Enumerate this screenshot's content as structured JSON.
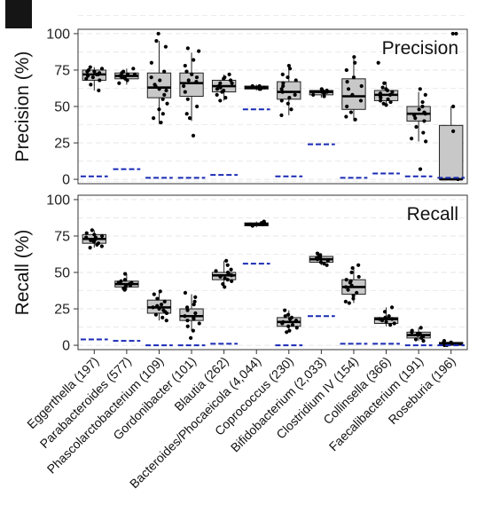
{
  "chart_data": {
    "type": "box",
    "categories": [
      "Eggerthella (197)",
      "Parabacteroides (577)",
      "Phascolarctobacterium (109)",
      "Gordonibacter (101)",
      "Blautia (262)",
      "Bacteroides/Phocaeicola (4,044)",
      "Coprococcus (230)",
      "Bifidobacterium (2,033)",
      "Clostridium IV (154)",
      "Collinsella (366)",
      "Faecalibacterium (191)",
      "Roseburia (196)"
    ],
    "colors": {
      "box_fill": "#c8c8c8",
      "median": "#000000",
      "points": "#000000",
      "baseline": "#1a2ab4",
      "grid": "#e6e6e6"
    },
    "panels": [
      {
        "title": "Precision",
        "ylabel": "Precision (%)",
        "ylim": [
          -3,
          103
        ],
        "yticks": [
          0,
          25,
          50,
          75,
          100
        ],
        "grid": true,
        "boxes": [
          {
            "whisker_low": 61,
            "q1": 68,
            "median": 72,
            "q3": 75,
            "whisker_high": 77
          },
          {
            "whisker_low": 65,
            "q1": 69,
            "median": 71,
            "q3": 73,
            "whisker_high": 76
          },
          {
            "whisker_low": 38,
            "q1": 56,
            "median": 63,
            "q3": 73,
            "whisker_high": 95
          },
          {
            "whisker_low": 40,
            "q1": 57,
            "median": 66,
            "q3": 73,
            "whisker_high": 87
          },
          {
            "whisker_low": 54,
            "q1": 60,
            "median": 64,
            "q3": 68,
            "whisker_high": 72
          },
          {
            "whisker_low": 61,
            "q1": 62,
            "median": 63,
            "q3": 64,
            "whisker_high": 65
          },
          {
            "whisker_low": 44,
            "q1": 55,
            "median": 60,
            "q3": 67,
            "whisker_high": 77
          },
          {
            "whisker_low": 56,
            "q1": 58,
            "median": 60,
            "q3": 61,
            "whisker_high": 63
          },
          {
            "whisker_low": 40,
            "q1": 48,
            "median": 57,
            "q3": 69,
            "whisker_high": 83
          },
          {
            "whisker_low": 50,
            "q1": 54,
            "median": 58,
            "q3": 61,
            "whisker_high": 67
          },
          {
            "whisker_low": 26,
            "q1": 40,
            "median": 45,
            "q3": 50,
            "whisker_high": 60
          },
          {
            "whisker_low": 0,
            "q1": 0,
            "median": 0,
            "q3": 37,
            "whisker_high": 50
          }
        ],
        "points": [
          [
            72,
            74,
            70,
            68,
            75,
            73,
            71,
            76,
            65,
            61,
            69,
            77,
            72,
            74
          ],
          [
            72,
            70,
            74,
            68,
            71,
            66,
            76,
            73,
            69,
            72,
            70
          ],
          [
            100,
            95,
            91,
            80,
            74,
            70,
            68,
            65,
            62,
            58,
            55,
            52,
            48,
            45,
            42,
            39,
            61,
            64
          ],
          [
            90,
            88,
            82,
            78,
            74,
            70,
            67,
            64,
            60,
            55,
            50,
            45,
            42,
            30,
            72,
            68
          ],
          [
            72,
            70,
            68,
            66,
            64,
            62,
            60,
            58,
            56,
            54,
            66,
            63,
            61,
            69
          ],
          [
            62,
            63,
            64,
            63,
            62,
            64
          ],
          [
            78,
            76,
            72,
            70,
            68,
            64,
            62,
            58,
            56,
            52,
            48,
            44,
            60,
            66,
            54
          ],
          [
            62,
            61,
            60,
            58,
            57,
            59,
            61,
            60
          ],
          [
            84,
            80,
            75,
            70,
            64,
            58,
            54,
            50,
            46,
            43,
            41,
            62,
            67
          ],
          [
            80,
            66,
            63,
            61,
            60,
            58,
            57,
            55,
            53,
            52,
            51,
            59,
            56,
            62,
            54
          ],
          [
            62,
            58,
            53,
            50,
            48,
            46,
            45,
            44,
            42,
            40,
            36,
            32,
            28,
            26,
            7
          ],
          [
            100,
            100,
            50,
            33,
            0
          ]
        ],
        "baseline": [
          2,
          7,
          1,
          1,
          3,
          48,
          2,
          24,
          1,
          4,
          2,
          1
        ]
      },
      {
        "title": "Recall",
        "ylabel": "Recall (%)",
        "ylim": [
          -3,
          103
        ],
        "yticks": [
          0,
          25,
          50,
          75,
          100
        ],
        "grid": true,
        "boxes": [
          {
            "whisker_low": 67,
            "q1": 70,
            "median": 73,
            "q3": 76,
            "whisker_high": 79
          },
          {
            "whisker_low": 38,
            "q1": 40,
            "median": 42,
            "q3": 44,
            "whisker_high": 49
          },
          {
            "whisker_low": 17,
            "q1": 22,
            "median": 26,
            "q3": 31,
            "whisker_high": 37
          },
          {
            "whisker_low": 10,
            "q1": 17,
            "median": 20,
            "q3": 25,
            "whisker_high": 35
          },
          {
            "whisker_low": 40,
            "q1": 45,
            "median": 48,
            "q3": 50,
            "whisker_high": 58
          },
          {
            "whisker_low": 81,
            "q1": 82,
            "median": 83,
            "q3": 84,
            "whisker_high": 85
          },
          {
            "whisker_low": 9,
            "q1": 13,
            "median": 16,
            "q3": 19,
            "whisker_high": 24
          },
          {
            "whisker_low": 55,
            "q1": 57,
            "median": 59,
            "q3": 61,
            "whisker_high": 63
          },
          {
            "whisker_low": 29,
            "q1": 35,
            "median": 40,
            "q3": 45,
            "whisker_high": 54
          },
          {
            "whisker_low": 13,
            "q1": 15,
            "median": 18,
            "q3": 19,
            "whisker_high": 26
          },
          {
            "whisker_low": 3,
            "q1": 5,
            "median": 7,
            "q3": 9,
            "whisker_high": 12
          },
          {
            "whisker_low": 0,
            "q1": 0,
            "median": 1,
            "q3": 2,
            "whisker_high": 3
          }
        ],
        "points": [
          [
            79,
            77,
            76,
            75,
            74,
            73,
            72,
            71,
            70,
            69,
            68,
            67,
            74,
            72
          ],
          [
            49,
            45,
            44,
            43,
            42,
            41,
            40,
            39,
            38,
            43,
            41
          ],
          [
            37,
            35,
            32,
            30,
            28,
            26,
            25,
            24,
            22,
            21,
            19,
            17,
            27,
            23
          ],
          [
            36,
            33,
            30,
            28,
            26,
            24,
            22,
            20,
            19,
            18,
            17,
            15,
            13,
            10,
            5
          ],
          [
            58,
            55,
            52,
            50,
            49,
            48,
            47,
            46,
            45,
            44,
            42,
            40,
            51
          ],
          [
            85,
            84,
            83,
            82,
            83,
            84
          ],
          [
            24,
            21,
            19,
            18,
            17,
            16,
            15,
            14,
            13,
            12,
            10,
            9,
            20
          ],
          [
            63,
            62,
            61,
            60,
            59,
            58,
            57,
            56,
            55,
            60
          ],
          [
            55,
            53,
            50,
            47,
            45,
            43,
            41,
            40,
            38,
            36,
            34,
            32,
            30,
            29,
            44
          ],
          [
            26,
            23,
            20,
            19,
            18,
            17,
            16,
            15,
            14,
            18
          ],
          [
            12,
            10,
            9,
            8,
            7,
            6,
            5,
            4,
            3,
            8
          ],
          [
            3,
            2,
            2,
            1,
            1,
            0,
            0
          ]
        ],
        "baseline": [
          4,
          3,
          0,
          0,
          1,
          56,
          0,
          20,
          1,
          1,
          0,
          0
        ]
      }
    ]
  }
}
